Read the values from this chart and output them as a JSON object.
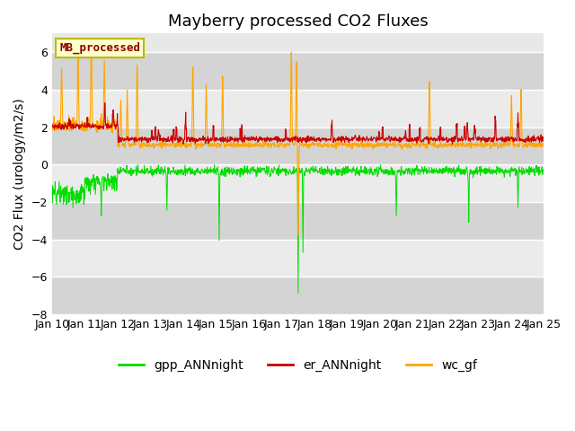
{
  "title": "Mayberry processed CO2 Fluxes",
  "ylabel": "CO2 Flux (urology/m2/s)",
  "ylim": [
    -8,
    7
  ],
  "yticks": [
    -8,
    -6,
    -4,
    -2,
    0,
    2,
    4,
    6
  ],
  "xtick_labels": [
    "Jan 10",
    "Jan 11",
    "Jan 12",
    "Jan 13",
    "Jan 14",
    "Jan 15",
    "Jan 16",
    "Jan 17",
    "Jan 18",
    "Jan 19",
    "Jan 20",
    "Jan 21",
    "Jan 22",
    "Jan 23",
    "Jan 24",
    "Jan 25"
  ],
  "legend_labels": [
    "gpp_ANNnight",
    "er_ANNnight",
    "wc_gf"
  ],
  "legend_colors": [
    "#00dd00",
    "#cc0000",
    "#ffa500"
  ],
  "textbox_label": "MB_processed",
  "textbox_color": "#8B0000",
  "textbox_bg": "#ffffcc",
  "textbox_edge": "#bbbb00",
  "title_fontsize": 13,
  "label_fontsize": 10,
  "tick_fontsize": 9,
  "legend_fontsize": 10,
  "plot_bg_color": "#e8e8e8",
  "band_color_dark": "#d4d4d4",
  "band_color_light": "#ebebeb",
  "n_points": 1440,
  "seed": 7
}
